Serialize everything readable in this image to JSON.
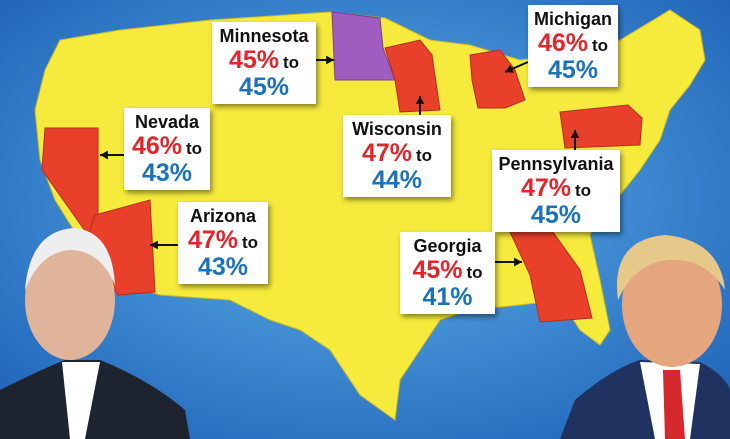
{
  "connector": "to",
  "states": [
    {
      "name": "Minnesota",
      "first": "45%",
      "second": "45%"
    },
    {
      "name": "Michigan",
      "first": "46%",
      "second": "45%"
    },
    {
      "name": "Nevada",
      "first": "46%",
      "second": "43%"
    },
    {
      "name": "Wisconsin",
      "first": "47%",
      "second": "44%"
    },
    {
      "name": "Pennsylvania",
      "first": "47%",
      "second": "45%"
    },
    {
      "name": "Arizona",
      "first": "47%",
      "second": "43%"
    },
    {
      "name": "Georgia",
      "first": "45%",
      "second": "41%"
    }
  ]
}
